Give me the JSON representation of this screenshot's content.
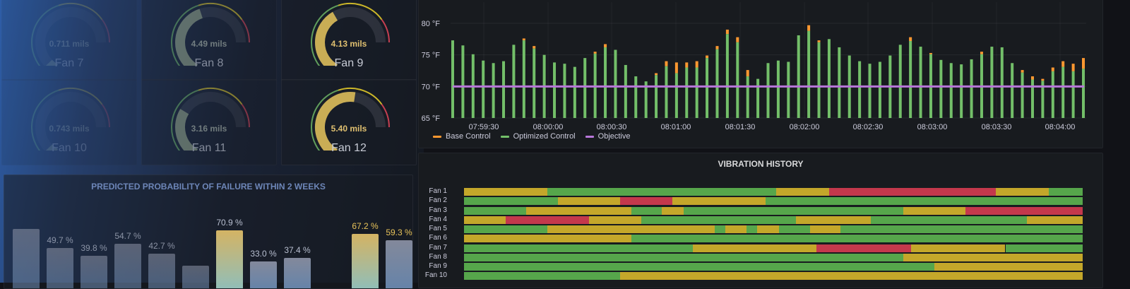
{
  "colors": {
    "green": "#73bf69",
    "yellow": "#fade2a",
    "red": "#f2495c",
    "orange": "#ff9830",
    "purple": "#b877d9",
    "status_green": "#56a64b",
    "status_yellow": "#c4a72a",
    "status_red": "#c4384c"
  },
  "gauges": [
    {
      "label": "Fan 7",
      "value_text": "0.711 mils",
      "fraction": 0.07
    },
    {
      "label": "Fan 8",
      "value_text": "4.49 mils",
      "fraction": 0.55
    },
    {
      "label": "Fan 9",
      "value_text": "4.13 mils",
      "fraction": 0.5
    },
    {
      "label": "Fan 10",
      "value_text": "0.743 mils",
      "fraction": 0.07
    },
    {
      "label": "Fan 11",
      "value_text": "3.16 mils",
      "fraction": 0.38
    },
    {
      "label": "Fan 12",
      "value_text": "5.40 mils",
      "fraction": 0.66
    }
  ],
  "failure_panel": {
    "title": "PREDICTED PROBABILITY OF FAILURE WITHIN 2 WEEKS",
    "bars": [
      {
        "label": "",
        "value": 73
      },
      {
        "label": "49.7 %",
        "value": 49.7
      },
      {
        "label": "39.8 %",
        "value": 39.8
      },
      {
        "label": "54.7 %",
        "value": 54.7
      },
      {
        "label": "42.7 %",
        "value": 42.7
      },
      {
        "label": "",
        "value": 28
      },
      {
        "label": "70.9 %",
        "value": 70.9
      },
      {
        "label": "33.0 %",
        "value": 33.0
      },
      {
        "label": "37.4 %",
        "value": 37.4
      },
      {
        "label": "",
        "value": 0
      },
      {
        "label": "67.2 %",
        "value": 67.2
      },
      {
        "label": "59.3 %",
        "value": 59.3
      }
    ]
  },
  "chart_data": [
    {
      "type": "bar",
      "title": "",
      "yticks": [
        "65 °F",
        "70 °F",
        "75 °F",
        "80 °F"
      ],
      "ylim": [
        65,
        80
      ],
      "xticks": [
        "07:59:30",
        "08:00:00",
        "08:00:30",
        "08:01:00",
        "08:01:30",
        "08:02:00",
        "08:02:30",
        "08:03:00",
        "08:03:30",
        "08:04:00"
      ],
      "legend": [
        "Base Control",
        "Optimized Control",
        "Objective"
      ],
      "objective": 70,
      "series": [
        {
          "name": "Optimized Control",
          "values": [
            77.3,
            76.5,
            75.1,
            74.1,
            73.7,
            74.0,
            76.6,
            77.3,
            76.0,
            75.0,
            73.8,
            73.6,
            73.1,
            74.5,
            75.2,
            76.2,
            75.8,
            73.4,
            71.6,
            70.8,
            71.8,
            73.2,
            72.1,
            73.0,
            73.0,
            74.5,
            75.9,
            78.3,
            77.0,
            71.6,
            71.2,
            73.7,
            74.1,
            73.9,
            78.1,
            78.8,
            77.0,
            77.5,
            76.2,
            74.9,
            74.0,
            73.6,
            73.9,
            74.9,
            76.6,
            77.2,
            76.3,
            75.1,
            74.2,
            73.7,
            73.5,
            74.3,
            75.1,
            76.3,
            76.2,
            73.7,
            72.2,
            71.1,
            70.9,
            72.4,
            73.1,
            72.4,
            72.8
          ]
        },
        {
          "name": "Base Control",
          "values": [
            77.3,
            76.5,
            75.1,
            74.1,
            73.7,
            74.0,
            76.6,
            77.6,
            76.4,
            75.0,
            73.8,
            73.6,
            73.1,
            74.5,
            75.5,
            76.7,
            75.8,
            73.4,
            71.6,
            70.8,
            72.1,
            74.0,
            73.8,
            73.8,
            74.0,
            74.9,
            76.4,
            79.0,
            77.8,
            72.6,
            71.2,
            73.7,
            74.1,
            73.9,
            78.1,
            79.7,
            77.3,
            77.5,
            76.2,
            74.9,
            74.0,
            73.6,
            73.9,
            74.9,
            76.6,
            77.8,
            76.3,
            75.3,
            74.2,
            73.7,
            73.5,
            74.3,
            75.5,
            76.3,
            76.2,
            73.7,
            72.6,
            71.6,
            71.2,
            73.0,
            74.0,
            73.6,
            74.5
          ]
        }
      ]
    }
  ],
  "vibration_panel": {
    "title": "VIBRATION HISTORY",
    "rows": [
      {
        "label": "Fan 1",
        "segments": [
          [
            "y",
            0.135
          ],
          [
            "g",
            0.37
          ],
          [
            "y",
            0.085
          ],
          [
            "r",
            0.27
          ],
          [
            "y",
            0.085
          ],
          [
            "g",
            0.055
          ]
        ]
      },
      {
        "label": "Fan 2",
        "segments": [
          [
            "g",
            0.152
          ],
          [
            "y",
            0.1
          ],
          [
            "r",
            0.085
          ],
          [
            "y",
            0.151
          ],
          [
            "g",
            0.512
          ]
        ]
      },
      {
        "label": "Fan 3",
        "segments": [
          [
            "g",
            0.1
          ],
          [
            "y",
            0.17
          ],
          [
            "g",
            0.05
          ],
          [
            "y",
            0.035
          ],
          [
            "g",
            0.355
          ],
          [
            "y",
            0.1
          ],
          [
            "r",
            0.19
          ]
        ]
      },
      {
        "label": "Fan 4",
        "segments": [
          [
            "y",
            0.067
          ],
          [
            "r",
            0.135
          ],
          [
            "y",
            0.085
          ],
          [
            "g",
            0.25
          ],
          [
            "y",
            0.12
          ],
          [
            "g",
            0.253
          ],
          [
            "y",
            0.09
          ]
        ]
      },
      {
        "label": "Fan 5",
        "segments": [
          [
            "g",
            0.135
          ],
          [
            "y",
            0.27
          ],
          [
            "g",
            0.017
          ],
          [
            "y",
            0.035
          ],
          [
            "g",
            0.017
          ],
          [
            "y",
            0.035
          ],
          [
            "g",
            0.05
          ],
          [
            "y",
            0.05
          ],
          [
            "g",
            0.391
          ]
        ]
      },
      {
        "label": "Fan 6",
        "segments": [
          [
            "y",
            0.27
          ],
          [
            "g",
            0.73
          ]
        ]
      },
      {
        "label": "Fan 7",
        "segments": [
          [
            "g",
            0.37
          ],
          [
            "y",
            0.2
          ],
          [
            "r",
            0.153
          ],
          [
            "y",
            0.152
          ],
          [
            "g",
            0.125
          ]
        ]
      },
      {
        "label": "Fan 8",
        "segments": [
          [
            "g",
            0.71
          ],
          [
            "y",
            0.29
          ]
        ]
      },
      {
        "label": "Fan 9",
        "segments": [
          [
            "g",
            0.76
          ],
          [
            "y",
            0.24
          ]
        ]
      },
      {
        "label": "Fan 10",
        "segments": [
          [
            "g",
            0.252
          ],
          [
            "y",
            0.748
          ]
        ]
      }
    ]
  }
}
